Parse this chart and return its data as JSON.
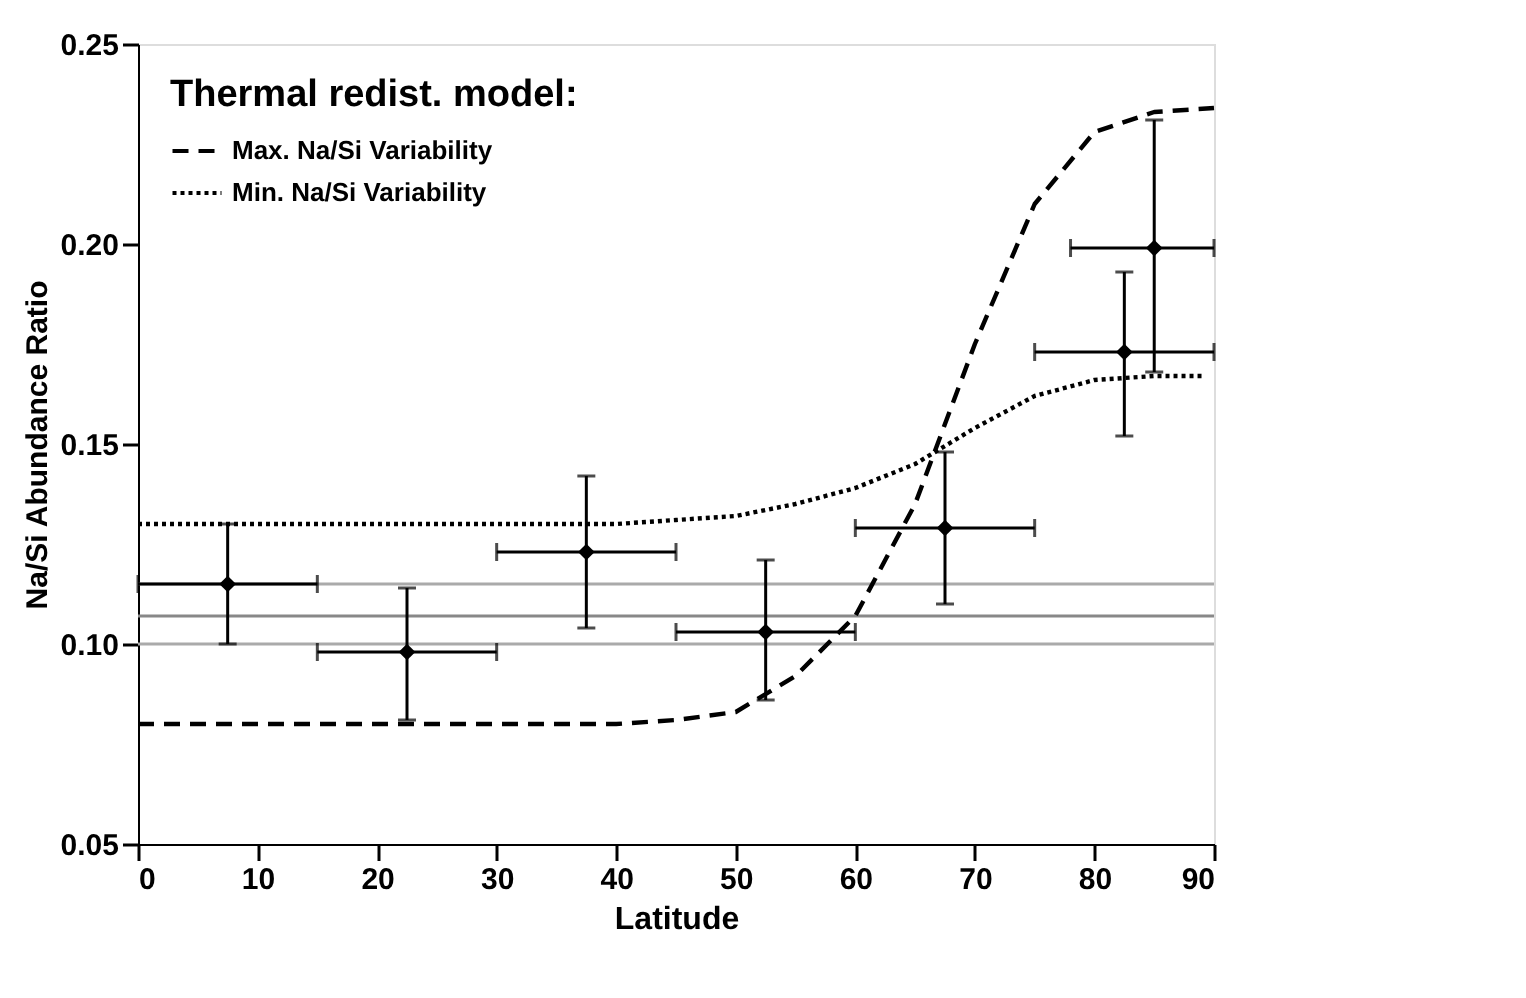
{
  "chart_data": {
    "type": "scatter",
    "xlabel": "Latitude",
    "ylabel": "Na/Si Abundance Ratio",
    "legend_title": "Thermal redist. model:",
    "xlim": [
      0,
      90
    ],
    "xticks": [
      0,
      10,
      20,
      30,
      40,
      50,
      60,
      70,
      80,
      90
    ],
    "ylim": [
      0.05,
      0.25
    ],
    "yticks": [
      {
        "value": 0.05,
        "label": "0.05"
      },
      {
        "value": 0.1,
        "label": "0.10"
      },
      {
        "value": 0.15,
        "label": "0.15"
      },
      {
        "value": 0.2,
        "label": "0.20"
      },
      {
        "value": 0.25,
        "label": "0.25"
      }
    ],
    "grid": false,
    "legend": "top left",
    "series": [
      {
        "color": "#000000",
        "marker": "diamond",
        "x": [
          7.5,
          22.5,
          37.5,
          52.5,
          67.5,
          82.5,
          85
        ],
        "values": [
          0.115,
          0.098,
          0.123,
          0.103,
          0.129,
          0.173,
          0.199
        ],
        "errors": [
          [
            0.1,
            0.13
          ],
          [
            0.081,
            0.114
          ],
          [
            0.104,
            0.142
          ],
          [
            0.086,
            0.121
          ],
          [
            0.11,
            0.148
          ],
          [
            0.152,
            0.193
          ],
          [
            0.168,
            0.231
          ]
        ],
        "xerrors": [
          [
            0,
            15
          ],
          [
            15,
            30
          ],
          [
            30,
            45
          ],
          [
            45,
            60
          ],
          [
            60,
            75
          ],
          [
            75,
            90
          ],
          [
            78,
            90
          ]
        ]
      },
      {
        "type": "line",
        "name": "Max. Na/Si Variability",
        "color": "#000000",
        "line_style": "dashed",
        "x": [
          0,
          10,
          20,
          30,
          40,
          45,
          50,
          55,
          60,
          65,
          70,
          75,
          80,
          85,
          90
        ],
        "values": [
          0.08,
          0.08,
          0.08,
          0.08,
          0.08,
          0.081,
          0.083,
          0.092,
          0.107,
          0.135,
          0.175,
          0.21,
          0.228,
          0.233,
          0.234
        ]
      },
      {
        "type": "line",
        "name": "Min.  Na/Si Variability",
        "color": "#000000",
        "line_style": "dotted",
        "x": [
          0,
          10,
          20,
          30,
          40,
          45,
          50,
          55,
          60,
          65,
          70,
          75,
          80,
          85,
          89
        ],
        "values": [
          0.13,
          0.13,
          0.13,
          0.13,
          0.13,
          0.131,
          0.132,
          0.135,
          0.139,
          0.145,
          0.154,
          0.162,
          0.166,
          0.167,
          0.167
        ]
      }
    ],
    "ref_lines": [
      {
        "axis": "y",
        "value": 0.115,
        "color": "#aaaaaa"
      },
      {
        "axis": "y",
        "value": 0.107,
        "color": "#888888"
      },
      {
        "axis": "y",
        "value": 0.1,
        "color": "#aaaaaa"
      }
    ]
  }
}
